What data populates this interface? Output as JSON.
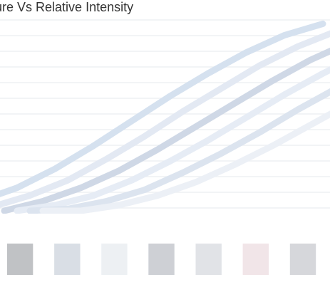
{
  "chart_data": {
    "type": "line",
    "title": "erature Vs Relative Intensity",
    "xlabel": "",
    "ylabel": "",
    "grid": true,
    "legend_placement": "bottom",
    "series": [
      {
        "values": [
          0.05,
          0.12,
          0.22,
          0.34,
          0.47,
          0.6,
          0.72,
          0.83,
          0.92,
          0.98
        ]
      },
      {
        "values": [
          0.02,
          0.08,
          0.16,
          0.27,
          0.39,
          0.52,
          0.64,
          0.76,
          0.86,
          0.94
        ]
      },
      {
        "values": [
          0.0,
          0.05,
          0.12,
          0.21,
          0.32,
          0.44,
          0.56,
          0.68,
          0.79,
          0.88
        ]
      },
      {
        "values": [
          0.0,
          0.03,
          0.08,
          0.16,
          0.26,
          0.37,
          0.49,
          0.61,
          0.72,
          0.82
        ]
      },
      {
        "values": [
          0.0,
          0.01,
          0.05,
          0.11,
          0.2,
          0.3,
          0.41,
          0.53,
          0.64,
          0.75
        ]
      },
      {
        "values": [
          0.0,
          0.0,
          0.03,
          0.08,
          0.15,
          0.24,
          0.34,
          0.45,
          0.56,
          0.67
        ]
      }
    ],
    "series_colors": [
      "#d5e1ef",
      "#e3e9f3",
      "#cfd8e6",
      "#e6ecf5",
      "#dce4ef",
      "#ecf0f6"
    ],
    "legend_colors": [
      "#8d8f96",
      "#b9c3cf",
      "#dfe4ea",
      "#a5aab2",
      "#c8ccd3",
      "#e6cfd6",
      "#b5b7be"
    ]
  }
}
